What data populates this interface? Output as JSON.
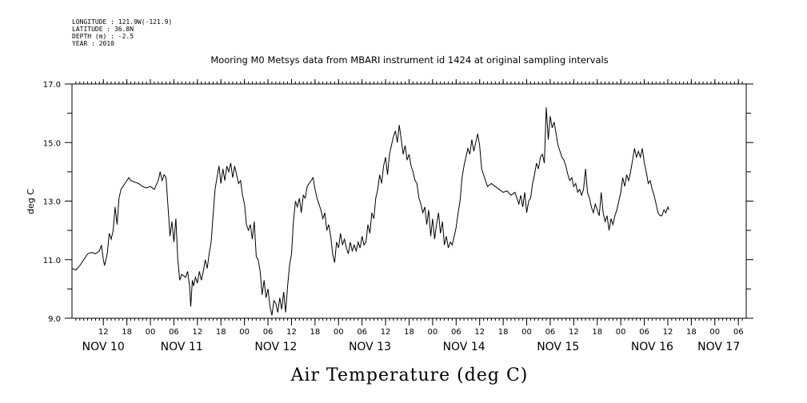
{
  "metadata": [
    "LONGITUDE : 121.9W(-121.9)",
    "LATITUDE : 36.8N",
    "DEPTH (m) : -2.5",
    "YEAR : 2010"
  ],
  "chart_data": {
    "type": "line",
    "title": "Mooring M0 Metsys data from MBARI instrument id 1424 at original sampling intervals",
    "xlabel": "Air Temperature (deg C)",
    "ylabel": "deg C",
    "ylim": [
      9.0,
      17.0
    ],
    "yticks": [
      "9.0",
      "11.0",
      "13.0",
      "15.0",
      "17.0"
    ],
    "xlim_hours": [
      0,
      172
    ],
    "hour_tick_labels": [
      {
        "h": 8,
        "label": "12"
      },
      {
        "h": 14,
        "label": "18"
      },
      {
        "h": 20,
        "label": "00"
      },
      {
        "h": 26,
        "label": "06"
      },
      {
        "h": 32,
        "label": "12"
      },
      {
        "h": 38,
        "label": "18"
      },
      {
        "h": 44,
        "label": "00"
      },
      {
        "h": 50,
        "label": "06"
      },
      {
        "h": 56,
        "label": "12"
      },
      {
        "h": 62,
        "label": "18"
      },
      {
        "h": 68,
        "label": "00"
      },
      {
        "h": 74,
        "label": "06"
      },
      {
        "h": 80,
        "label": "12"
      },
      {
        "h": 86,
        "label": "18"
      },
      {
        "h": 92,
        "label": "00"
      },
      {
        "h": 98,
        "label": "06"
      },
      {
        "h": 104,
        "label": "12"
      },
      {
        "h": 110,
        "label": "18"
      },
      {
        "h": 116,
        "label": "00"
      },
      {
        "h": 122,
        "label": "06"
      },
      {
        "h": 128,
        "label": "12"
      },
      {
        "h": 134,
        "label": "18"
      },
      {
        "h": 140,
        "label": "00"
      },
      {
        "h": 146,
        "label": "06"
      },
      {
        "h": 152,
        "label": "12"
      },
      {
        "h": 158,
        "label": "18"
      },
      {
        "h": 164,
        "label": "00"
      },
      {
        "h": 170,
        "label": "06"
      }
    ],
    "day_labels": [
      {
        "h": 8,
        "label": "NOV 10"
      },
      {
        "h": 28,
        "label": "NOV 11"
      },
      {
        "h": 52,
        "label": "NOV 12"
      },
      {
        "h": 76,
        "label": "NOV 13"
      },
      {
        "h": 100,
        "label": "NOV 14"
      },
      {
        "h": 124,
        "label": "NOV 15"
      },
      {
        "h": 148,
        "label": "NOV 16"
      },
      {
        "h": 165,
        "label": "NOV 17"
      }
    ],
    "series": [
      {
        "values": [
          [
            0,
            10.7
          ],
          [
            1,
            10.65
          ],
          [
            2,
            10.8
          ],
          [
            3,
            11.0
          ],
          [
            4,
            11.2
          ],
          [
            5,
            11.25
          ],
          [
            6,
            11.2
          ],
          [
            7,
            11.3
          ],
          [
            7.5,
            11.5
          ],
          [
            8,
            11.0
          ],
          [
            8.3,
            10.8
          ],
          [
            9,
            11.2
          ],
          [
            9.5,
            11.9
          ],
          [
            10,
            11.7
          ],
          [
            10.5,
            12.0
          ],
          [
            11,
            12.8
          ],
          [
            11.5,
            12.2
          ],
          [
            12,
            13.1
          ],
          [
            12.5,
            13.4
          ],
          [
            13,
            13.5
          ],
          [
            14,
            13.7
          ],
          [
            14.5,
            13.8
          ],
          [
            15,
            13.7
          ],
          [
            16,
            13.65
          ],
          [
            17,
            13.6
          ],
          [
            18,
            13.5
          ],
          [
            19,
            13.45
          ],
          [
            20,
            13.5
          ],
          [
            21,
            13.4
          ],
          [
            22,
            13.7
          ],
          [
            22.5,
            14.0
          ],
          [
            23,
            13.7
          ],
          [
            23.5,
            13.9
          ],
          [
            24,
            13.8
          ],
          [
            24.3,
            13.2
          ],
          [
            24.7,
            12.4
          ],
          [
            25,
            11.8
          ],
          [
            25.5,
            12.3
          ],
          [
            26,
            11.6
          ],
          [
            26.5,
            12.4
          ],
          [
            27,
            11.0
          ],
          [
            27.5,
            10.3
          ],
          [
            28,
            10.5
          ],
          [
            29,
            10.4
          ],
          [
            29.5,
            10.6
          ],
          [
            30,
            10.1
          ],
          [
            30.3,
            9.4
          ],
          [
            30.7,
            10.3
          ],
          [
            31,
            10.1
          ],
          [
            31.5,
            10.4
          ],
          [
            32,
            10.2
          ],
          [
            32.5,
            10.6
          ],
          [
            33,
            10.3
          ],
          [
            33.5,
            10.6
          ],
          [
            34,
            11.0
          ],
          [
            34.5,
            10.7
          ],
          [
            35,
            11.2
          ],
          [
            35.5,
            11.6
          ],
          [
            36,
            12.5
          ],
          [
            36.5,
            13.4
          ],
          [
            37,
            13.8
          ],
          [
            37.5,
            14.2
          ],
          [
            38,
            13.6
          ],
          [
            38.5,
            14.1
          ],
          [
            39,
            13.7
          ],
          [
            39.5,
            14.2
          ],
          [
            40,
            14.0
          ],
          [
            40.5,
            14.3
          ],
          [
            41,
            13.8
          ],
          [
            41.5,
            14.2
          ],
          [
            42,
            13.9
          ],
          [
            42.5,
            13.6
          ],
          [
            43,
            13.7
          ],
          [
            43.5,
            13.2
          ],
          [
            44,
            12.9
          ],
          [
            44.5,
            12.2
          ],
          [
            45,
            12.0
          ],
          [
            45.5,
            12.2
          ],
          [
            46,
            11.7
          ],
          [
            46.5,
            12.3
          ],
          [
            47,
            11.1
          ],
          [
            47.5,
            11.0
          ],
          [
            48,
            10.6
          ],
          [
            48.5,
            9.8
          ],
          [
            49,
            10.3
          ],
          [
            49.5,
            9.7
          ],
          [
            50,
            10.0
          ],
          [
            50.5,
            9.4
          ],
          [
            51,
            9.1
          ],
          [
            51.5,
            9.6
          ],
          [
            52,
            9.5
          ],
          [
            52.5,
            9.2
          ],
          [
            53,
            9.7
          ],
          [
            53.5,
            9.3
          ],
          [
            54,
            9.9
          ],
          [
            54.5,
            9.2
          ],
          [
            55,
            10.1
          ],
          [
            55.5,
            10.8
          ],
          [
            56,
            11.2
          ],
          [
            56.5,
            12.3
          ],
          [
            57,
            13.0
          ],
          [
            57.5,
            12.8
          ],
          [
            58,
            13.1
          ],
          [
            58.5,
            12.6
          ],
          [
            59,
            13.2
          ],
          [
            59.5,
            13.1
          ],
          [
            60,
            13.5
          ],
          [
            61,
            13.7
          ],
          [
            61.5,
            13.8
          ],
          [
            62,
            13.4
          ],
          [
            62.5,
            13.1
          ],
          [
            63,
            12.9
          ],
          [
            63.5,
            12.7
          ],
          [
            64,
            12.4
          ],
          [
            64.5,
            12.6
          ],
          [
            65,
            12.0
          ],
          [
            65.5,
            12.2
          ],
          [
            66,
            11.8
          ],
          [
            66.5,
            11.2
          ],
          [
            67,
            10.9
          ],
          [
            67.5,
            11.6
          ],
          [
            68,
            11.4
          ],
          [
            68.5,
            11.9
          ],
          [
            69,
            11.5
          ],
          [
            69.5,
            11.7
          ],
          [
            70,
            11.4
          ],
          [
            70.5,
            11.2
          ],
          [
            71,
            11.6
          ],
          [
            71.5,
            11.3
          ],
          [
            72,
            11.5
          ],
          [
            72.5,
            11.3
          ],
          [
            73,
            11.6
          ],
          [
            73.5,
            11.4
          ],
          [
            74,
            11.8
          ],
          [
            74.5,
            11.5
          ],
          [
            75,
            11.6
          ],
          [
            75.5,
            12.2
          ],
          [
            76,
            11.9
          ],
          [
            76.5,
            12.6
          ],
          [
            77,
            12.4
          ],
          [
            77.5,
            13.1
          ],
          [
            78,
            13.4
          ],
          [
            78.5,
            13.9
          ],
          [
            79,
            13.6
          ],
          [
            79.5,
            14.2
          ],
          [
            80,
            14.5
          ],
          [
            80.5,
            13.9
          ],
          [
            81,
            14.6
          ],
          [
            81.5,
            14.9
          ],
          [
            82,
            15.2
          ],
          [
            82.5,
            15.4
          ],
          [
            83,
            15.0
          ],
          [
            83.5,
            15.6
          ],
          [
            84,
            15.1
          ],
          [
            84.5,
            14.6
          ],
          [
            85,
            14.9
          ],
          [
            85.5,
            14.4
          ],
          [
            86,
            14.6
          ],
          [
            86.5,
            14.2
          ],
          [
            87,
            14.0
          ],
          [
            87.5,
            13.7
          ],
          [
            88,
            13.6
          ],
          [
            88.5,
            13.1
          ],
          [
            89,
            12.9
          ],
          [
            89.5,
            12.6
          ],
          [
            90,
            12.8
          ],
          [
            90.5,
            12.2
          ],
          [
            91,
            12.7
          ],
          [
            91.5,
            11.8
          ],
          [
            92,
            12.4
          ],
          [
            92.5,
            11.7
          ],
          [
            93,
            12.2
          ],
          [
            93.5,
            12.6
          ],
          [
            94,
            11.9
          ],
          [
            94.5,
            12.3
          ],
          [
            95,
            11.5
          ],
          [
            95.5,
            11.8
          ],
          [
            96,
            11.4
          ],
          [
            96.5,
            11.6
          ],
          [
            97,
            11.5
          ],
          [
            97.5,
            11.8
          ],
          [
            98,
            12.1
          ],
          [
            98.5,
            12.6
          ],
          [
            99,
            13.0
          ],
          [
            99.5,
            13.8
          ],
          [
            100,
            14.2
          ],
          [
            100.5,
            14.5
          ],
          [
            101,
            14.8
          ],
          [
            101.5,
            14.6
          ],
          [
            102,
            15.1
          ],
          [
            102.5,
            14.7
          ],
          [
            103,
            15.0
          ],
          [
            103.5,
            15.3
          ],
          [
            104,
            14.9
          ],
          [
            104.5,
            14.1
          ],
          [
            105,
            13.9
          ],
          [
            105.5,
            13.7
          ],
          [
            106,
            13.5
          ],
          [
            107,
            13.6
          ],
          [
            108,
            13.5
          ],
          [
            109,
            13.4
          ],
          [
            110,
            13.3
          ],
          [
            111,
            13.35
          ],
          [
            112,
            13.2
          ],
          [
            113,
            13.3
          ],
          [
            113.5,
            13.1
          ],
          [
            114,
            12.9
          ],
          [
            114.5,
            13.2
          ],
          [
            115,
            12.8
          ],
          [
            115.5,
            13.3
          ],
          [
            116,
            12.6
          ],
          [
            116.5,
            13.0
          ],
          [
            117,
            13.1
          ],
          [
            117.5,
            13.6
          ],
          [
            118,
            13.9
          ],
          [
            118.5,
            14.3
          ],
          [
            119,
            14.1
          ],
          [
            119.5,
            14.5
          ],
          [
            120,
            14.6
          ],
          [
            120.5,
            14.3
          ],
          [
            121,
            16.2
          ],
          [
            121.5,
            15.1
          ],
          [
            122,
            15.9
          ],
          [
            122.5,
            15.5
          ],
          [
            123,
            15.7
          ],
          [
            123.5,
            15.3
          ],
          [
            124,
            14.9
          ],
          [
            124.5,
            14.7
          ],
          [
            125,
            14.5
          ],
          [
            125.5,
            14.4
          ],
          [
            126,
            14.2
          ],
          [
            126.5,
            13.9
          ],
          [
            127,
            13.7
          ],
          [
            127.5,
            13.8
          ],
          [
            128,
            13.5
          ],
          [
            128.5,
            13.6
          ],
          [
            129,
            13.3
          ],
          [
            129.5,
            13.4
          ],
          [
            130,
            13.2
          ],
          [
            130.5,
            13.4
          ],
          [
            131,
            14.1
          ],
          [
            131.5,
            13.3
          ],
          [
            132,
            13.1
          ],
          [
            132.5,
            12.8
          ],
          [
            133,
            12.6
          ],
          [
            133.5,
            12.9
          ],
          [
            134,
            12.7
          ],
          [
            134.5,
            12.5
          ],
          [
            135,
            13.3
          ],
          [
            135.5,
            12.6
          ],
          [
            136,
            12.3
          ],
          [
            136.5,
            12.5
          ],
          [
            137,
            12.0
          ],
          [
            137.5,
            12.4
          ],
          [
            138,
            12.2
          ],
          [
            138.5,
            12.5
          ],
          [
            139,
            12.7
          ],
          [
            139.5,
            13.0
          ],
          [
            140,
            13.3
          ],
          [
            140.5,
            13.8
          ],
          [
            141,
            13.5
          ],
          [
            141.5,
            13.9
          ],
          [
            142,
            13.7
          ],
          [
            142.5,
            14.0
          ],
          [
            143,
            14.4
          ],
          [
            143.5,
            14.8
          ],
          [
            144,
            14.5
          ],
          [
            144.5,
            14.7
          ],
          [
            145,
            14.5
          ],
          [
            145.5,
            14.8
          ],
          [
            146,
            14.3
          ],
          [
            146.5,
            14.0
          ],
          [
            147,
            13.6
          ],
          [
            147.5,
            13.7
          ],
          [
            148,
            13.4
          ],
          [
            148.5,
            13.2
          ],
          [
            149,
            12.9
          ],
          [
            149.5,
            12.6
          ],
          [
            150,
            12.5
          ],
          [
            150.5,
            12.5
          ],
          [
            151,
            12.7
          ],
          [
            151.5,
            12.6
          ],
          [
            152,
            12.8
          ],
          [
            152.3,
            12.7
          ]
        ]
      }
    ]
  }
}
